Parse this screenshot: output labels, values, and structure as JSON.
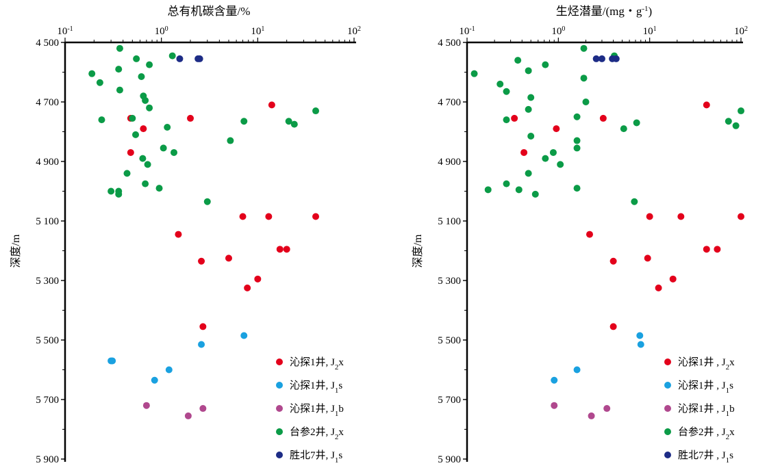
{
  "ylabel": "深度/m",
  "yticks": [
    4500,
    4700,
    4900,
    5100,
    5300,
    5500,
    5700,
    5900
  ],
  "ytick_labels": [
    "4 500",
    "4 700",
    "4 900",
    "5 100",
    "5 300",
    "5 500",
    "5 700",
    "5 900"
  ],
  "colors": {
    "red": "#e3001b",
    "lightblue": "#1aa1e0",
    "purple": "#b0488e",
    "green": "#0b9b47",
    "navy": "#1d2c86"
  },
  "chart_data": [
    {
      "type": "scatter",
      "title": "总有机碳含量/%",
      "xscale": "log",
      "xlim": [
        0.1,
        100
      ],
      "x_ticks": [
        "10-1",
        "100",
        "101",
        "102"
      ],
      "ylabel": "深度/m",
      "ylim": [
        4500,
        5900
      ],
      "y_inverted": true,
      "legend_position": "bottom-right",
      "legend": [
        "沁探1井, J2x",
        "沁探1井, J1s",
        "沁探1井, J1b",
        "台参2井, J2x",
        "胜北7井, J1s"
      ],
      "series": [
        {
          "name": "沁探1井, J2x",
          "color": "red",
          "points": [
            [
              14.0,
              4710
            ],
            [
              0.48,
              4755
            ],
            [
              2.0,
              4755
            ],
            [
              0.65,
              4790
            ],
            [
              0.48,
              4870
            ],
            [
              40.0,
              5085
            ],
            [
              7.0,
              5085
            ],
            [
              13.0,
              5085
            ],
            [
              1.5,
              5145
            ],
            [
              17.0,
              5195
            ],
            [
              20.0,
              5195
            ],
            [
              5.0,
              5225
            ],
            [
              2.6,
              5235
            ],
            [
              10.0,
              5295
            ],
            [
              7.8,
              5325
            ],
            [
              2.7,
              5455
            ]
          ]
        },
        {
          "name": "沁探1井, J1s",
          "color": "lightblue",
          "points": [
            [
              7.2,
              5485
            ],
            [
              2.6,
              5515
            ],
            [
              0.3,
              5570
            ],
            [
              0.31,
              5570
            ],
            [
              1.2,
              5600
            ],
            [
              0.85,
              5635
            ]
          ]
        },
        {
          "name": "沁探1井, J1b",
          "color": "purple",
          "points": [
            [
              0.7,
              5720
            ],
            [
              2.7,
              5730
            ],
            [
              1.9,
              5755
            ]
          ]
        },
        {
          "name": "台参2井, J2x",
          "color": "green",
          "points": [
            [
              0.37,
              4520
            ],
            [
              1.3,
              4545
            ],
            [
              0.55,
              4555
            ],
            [
              0.75,
              4575
            ],
            [
              0.36,
              4590
            ],
            [
              0.19,
              4605
            ],
            [
              0.62,
              4615
            ],
            [
              0.23,
              4635
            ],
            [
              0.37,
              4660
            ],
            [
              0.65,
              4680
            ],
            [
              0.68,
              4695
            ],
            [
              0.75,
              4720
            ],
            [
              40.0,
              4730
            ],
            [
              0.5,
              4755
            ],
            [
              0.24,
              4760
            ],
            [
              7.2,
              4765
            ],
            [
              21.0,
              4765
            ],
            [
              24.0,
              4775
            ],
            [
              1.15,
              4785
            ],
            [
              0.54,
              4810
            ],
            [
              5.2,
              4830
            ],
            [
              1.05,
              4855
            ],
            [
              1.35,
              4870
            ],
            [
              0.64,
              4890
            ],
            [
              0.72,
              4910
            ],
            [
              0.44,
              4940
            ],
            [
              0.68,
              4975
            ],
            [
              0.95,
              4990
            ],
            [
              0.3,
              5000
            ],
            [
              0.36,
              5000
            ],
            [
              0.36,
              5010
            ],
            [
              3.0,
              5035
            ]
          ]
        },
        {
          "name": "胜北7井, J1s",
          "color": "navy",
          "points": [
            [
              1.55,
              4555
            ],
            [
              2.4,
              4555
            ],
            [
              2.5,
              4555
            ]
          ]
        }
      ]
    },
    {
      "type": "scatter",
      "title": "生烃潜量/(mg・g-1)",
      "xscale": "log",
      "xlim": [
        0.1,
        100
      ],
      "x_ticks": [
        "10-1",
        "100",
        "101",
        "102"
      ],
      "ylabel": "深度/m",
      "ylim": [
        4500,
        5900
      ],
      "y_inverted": true,
      "legend_position": "bottom-right",
      "legend": [
        "沁探1井 , J2x",
        "沁探1井 , J1s",
        "沁探1井 , J1b",
        "台参2井 , J2x",
        "胜北7井 , J1s"
      ],
      "series": [
        {
          "name": "沁探1井 , J2x",
          "color": "red",
          "points": [
            [
              42,
              4710
            ],
            [
              0.33,
              4755
            ],
            [
              3.1,
              4755
            ],
            [
              0.95,
              4790
            ],
            [
              0.42,
              4870
            ],
            [
              10,
              5085
            ],
            [
              22,
              5085
            ],
            [
              100,
              5085
            ],
            [
              2.2,
              5145
            ],
            [
              42,
              5195
            ],
            [
              55,
              5195
            ],
            [
              9.5,
              5225
            ],
            [
              4.0,
              5235
            ],
            [
              18,
              5295
            ],
            [
              12.5,
              5325
            ],
            [
              4.0,
              5455
            ]
          ]
        },
        {
          "name": "沁探1井 , J1s",
          "color": "lightblue",
          "points": [
            [
              7.8,
              5485
            ],
            [
              8.0,
              5515
            ],
            [
              1.6,
              5600
            ],
            [
              0.9,
              5635
            ]
          ]
        },
        {
          "name": "沁探1井 , J1b",
          "color": "purple",
          "points": [
            [
              0.9,
              5720
            ],
            [
              3.4,
              5730
            ],
            [
              2.3,
              5755
            ]
          ]
        },
        {
          "name": "台参2井 , J2x",
          "color": "green",
          "points": [
            [
              1.9,
              4520
            ],
            [
              4.1,
              4545
            ],
            [
              0.36,
              4560
            ],
            [
              0.72,
              4575
            ],
            [
              0.47,
              4595
            ],
            [
              0.12,
              4605
            ],
            [
              1.9,
              4620
            ],
            [
              0.23,
              4640
            ],
            [
              0.27,
              4665
            ],
            [
              0.5,
              4685
            ],
            [
              2.0,
              4700
            ],
            [
              0.47,
              4725
            ],
            [
              100,
              4730
            ],
            [
              1.6,
              4750
            ],
            [
              0.27,
              4760
            ],
            [
              73,
              4765
            ],
            [
              7.2,
              4770
            ],
            [
              88,
              4780
            ],
            [
              5.2,
              4790
            ],
            [
              0.5,
              4815
            ],
            [
              1.6,
              4830
            ],
            [
              1.6,
              4855
            ],
            [
              0.88,
              4870
            ],
            [
              0.72,
              4890
            ],
            [
              1.05,
              4910
            ],
            [
              0.47,
              4940
            ],
            [
              0.27,
              4975
            ],
            [
              0.17,
              4995
            ],
            [
              0.37,
              4995
            ],
            [
              1.6,
              4990
            ],
            [
              0.56,
              5010
            ],
            [
              6.8,
              5035
            ]
          ]
        },
        {
          "name": "胜北7井 , J1s",
          "color": "navy",
          "points": [
            [
              2.6,
              4555
            ],
            [
              3.0,
              4555
            ],
            [
              3.9,
              4555
            ],
            [
              4.3,
              4555
            ]
          ]
        }
      ]
    }
  ]
}
